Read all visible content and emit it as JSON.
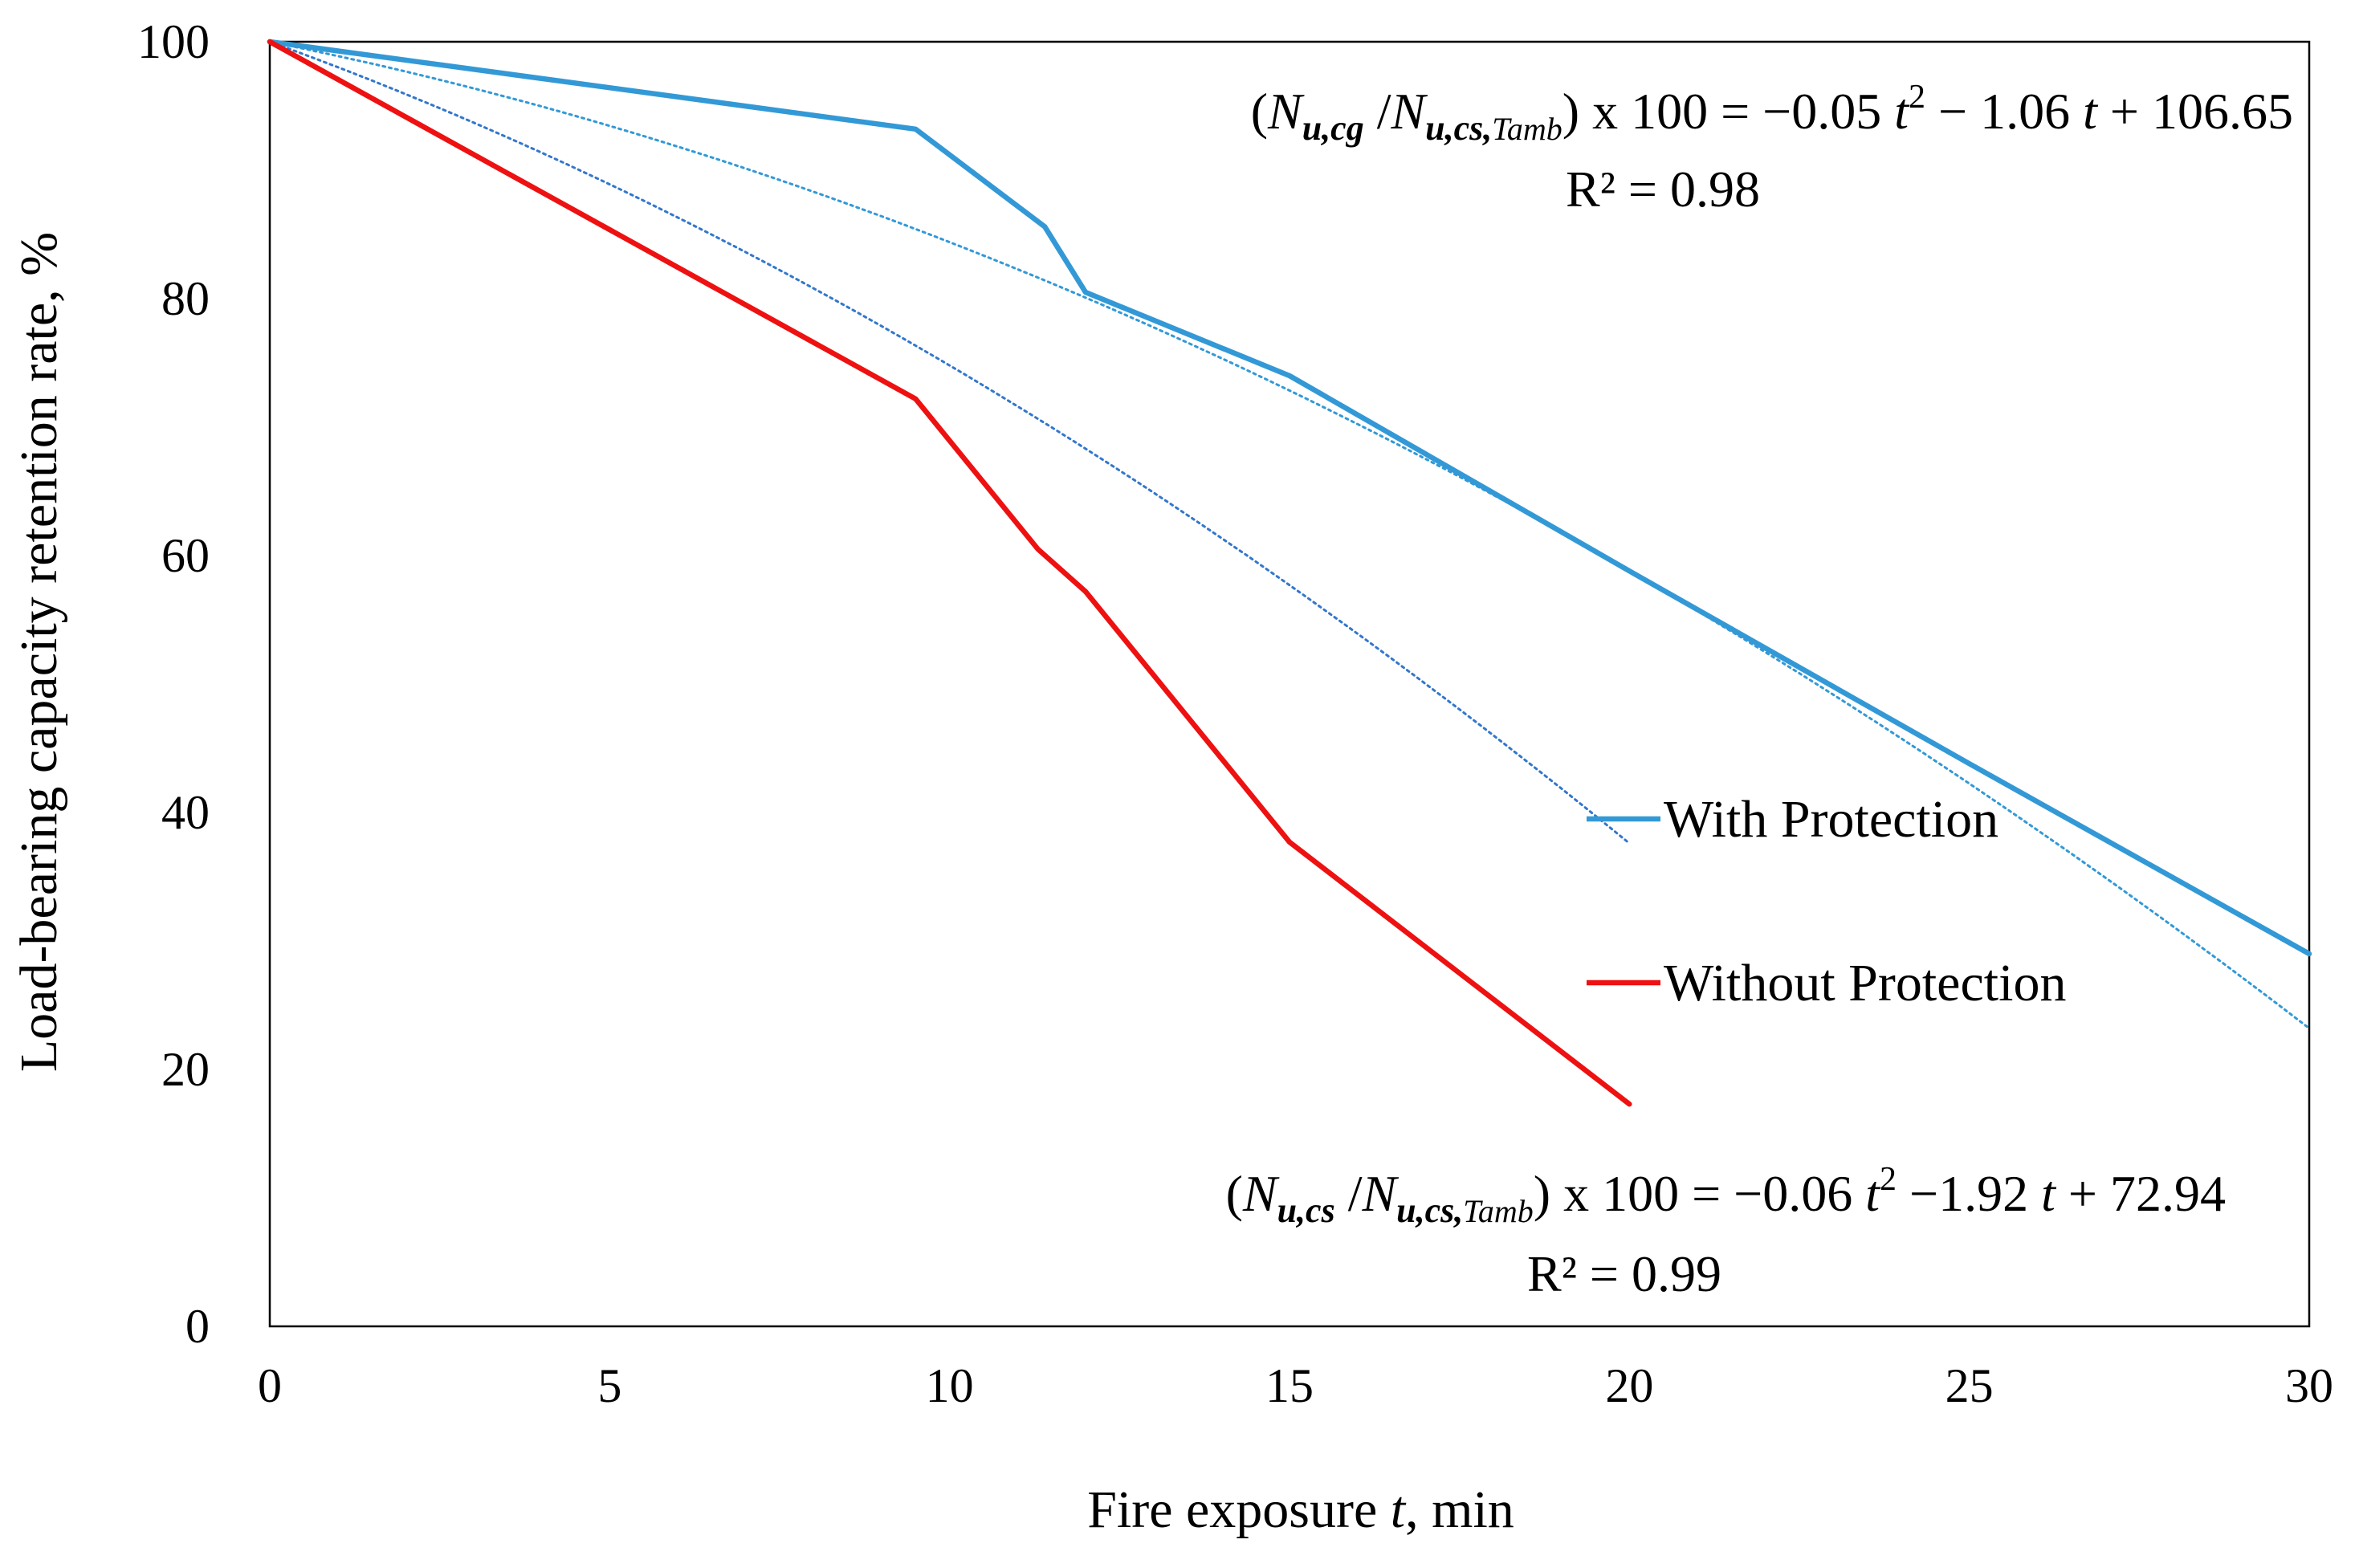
{
  "chart_data": {
    "type": "line",
    "title": "",
    "xlabel": {
      "prefix": "Fire exposure ",
      "var": "t",
      "suffix": ", min"
    },
    "ylabel": "Load-bearing capacity retention rate, %",
    "xlim": [
      0,
      30
    ],
    "ylim": [
      0,
      100
    ],
    "xticks": [
      0,
      5,
      10,
      15,
      20,
      25,
      30
    ],
    "yticks": [
      0,
      20,
      40,
      60,
      80,
      100
    ],
    "grid": false,
    "legend_position": "center-right",
    "colors": {
      "with_protection": "#3399d6",
      "without_protection": "#ee1111",
      "trend_with": "#3399d6",
      "trend_without": "#3377cc"
    },
    "series": [
      {
        "name": "With Protection",
        "color": "#3399d6",
        "x": [
          0,
          9.5,
          11.4,
          12.0,
          15.0,
          20.0,
          25.0,
          30.0
        ],
        "y": [
          100,
          93.2,
          85.6,
          80.5,
          74.0,
          58.8,
          43.8,
          29.0
        ]
      },
      {
        "name": "Without Protection",
        "color": "#ee1111",
        "x": [
          0,
          9.5,
          11.3,
          12.0,
          15.0,
          20.0
        ],
        "y": [
          100,
          72.2,
          60.5,
          57.2,
          37.7,
          17.3
        ]
      }
    ],
    "trendlines": [
      {
        "series": "With Protection",
        "style": "dotted",
        "color": "#3399d6",
        "coefficients": {
          "a": -0.05,
          "b": -1.06,
          "c": 106.65
        },
        "x_range": [
          0,
          30
        ],
        "display_anchor": {
          "t": 0,
          "value": 100
        },
        "equation": {
          "open": "(",
          "num_main": "N",
          "num_sub": "u,cg",
          "slash": " /",
          "den_main": "N",
          "den_sub": "u,cs,",
          "den_sub2": "Tamb",
          "close": ")",
          "mid": " x 100 = −0.05 ",
          "t1": "t",
          "sup": "2",
          "mid2": " − 1.06 ",
          "t2": "t",
          "tail": " + 106.65"
        },
        "r2": "R² = 0.98"
      },
      {
        "series": "Without Protection",
        "style": "dotted",
        "color": "#3377cc",
        "coefficients": {
          "a": -0.06,
          "b": -1.92,
          "c": 72.94
        },
        "x_range": [
          0,
          20
        ],
        "display_anchor": {
          "t": 0,
          "value": 100
        },
        "equation": {
          "open": "(",
          "num_main": "N",
          "num_sub": "u,cs",
          "slash": " /",
          "den_main": "N",
          "den_sub": "u,cs,",
          "den_sub2": "Tamb",
          "close": ")",
          "mid": " x 100 = −0.06 ",
          "t1": "t",
          "sup": "2",
          "mid2": " −1.92 ",
          "t2": "t",
          "tail": " + 72.94"
        },
        "r2": "R² = 0.99"
      }
    ],
    "legend": [
      {
        "label": "With Protection",
        "color": "#3399d6"
      },
      {
        "label": "Without Protection",
        "color": "#ee1111"
      }
    ]
  }
}
